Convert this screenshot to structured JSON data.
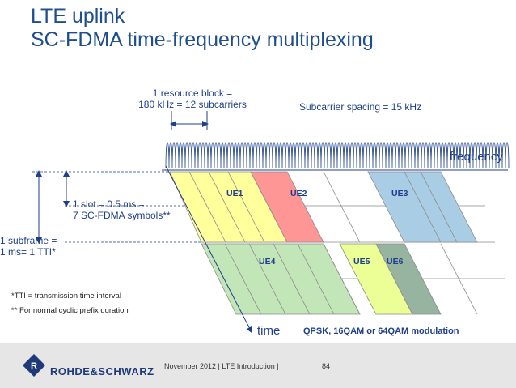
{
  "title": {
    "line1": "LTE uplink",
    "line2": "SC-FDMA time-frequency multiplexing"
  },
  "resource_block": {
    "line1": "1 resource block =",
    "line2": "180 kHz = 12 subcarriers"
  },
  "subcarrier_spacing": "Subcarrier spacing = 15 kHz",
  "axis": {
    "frequency": "frequency",
    "time": "time"
  },
  "slot": {
    "line1": "1 slot = 0.5 ms =",
    "line2": "7 SC-FDMA symbols**"
  },
  "subframe": {
    "line1": "1 subframe =",
    "line2": "1 ms= 1 TTI*"
  },
  "ue_labels": {
    "ue1": "UE1",
    "ue2": "UE2",
    "ue3": "UE3",
    "ue4": "UE4",
    "ue5": "UE5",
    "ue6": "UE6"
  },
  "notes": {
    "tti": "*TTI = transmission time interval",
    "cp": "** For normal cyclic prefix duration"
  },
  "modulation": "QPSK, 16QAM or 64QAM modulation",
  "footer": {
    "logo": "ROHDE&SCHWARZ",
    "text": "November 2012 | LTE Introduction  |",
    "page": "84"
  },
  "colors": {
    "ue1": "#ffff9c",
    "ue2": "#ff9696",
    "ue3": "#aacde6",
    "ue4": "#c3e6b9",
    "ue5": "#ebff96",
    "ue6": "#96b4a0",
    "title": "#1f4e8c",
    "footer": "#e6e6e6"
  }
}
